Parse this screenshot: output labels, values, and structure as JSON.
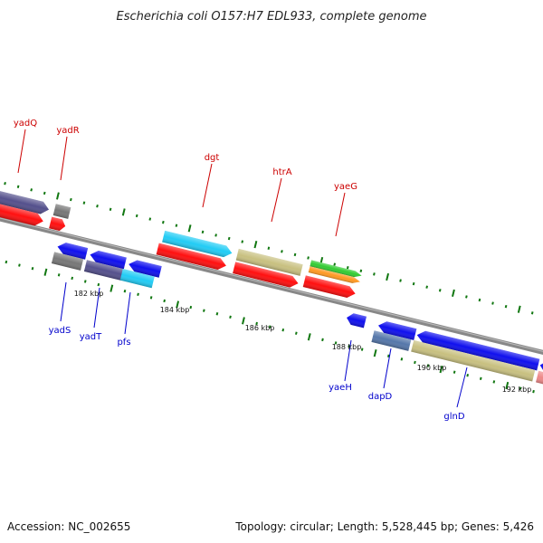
{
  "title": "Escherichia coli O157:H7 EDL933, complete genome",
  "footer": {
    "accession": "Accession: NC_002655",
    "summary": "Topology: circular; Length: 5,528,445 bp; Genes: 5,426"
  },
  "colors": {
    "forward_label": "#cc0000",
    "reverse_label": "#0000cc",
    "red": "#ff1010",
    "blue": "#1010ee",
    "cyan": "#22ccf5",
    "khaki": "#c8c080",
    "purple": "#54508c",
    "gray": "#777777",
    "green": "#33cc33",
    "orange": "#ff9922",
    "steel": "#5577aa",
    "pink": "#ee8888",
    "backbone": "#888888",
    "tick": "#117711"
  },
  "scale_labels": [
    "182 kbp",
    "184 kbp",
    "186 kbp",
    "188 kbp",
    "190 kbp",
    "192 kbp"
  ],
  "forward_labels": [
    "yadQ",
    "yadR",
    "dgt",
    "htrA",
    "yaeG"
  ],
  "reverse_labels": [
    "yadS",
    "yadT",
    "pfs",
    "yaeH",
    "dapD",
    "glnD"
  ]
}
